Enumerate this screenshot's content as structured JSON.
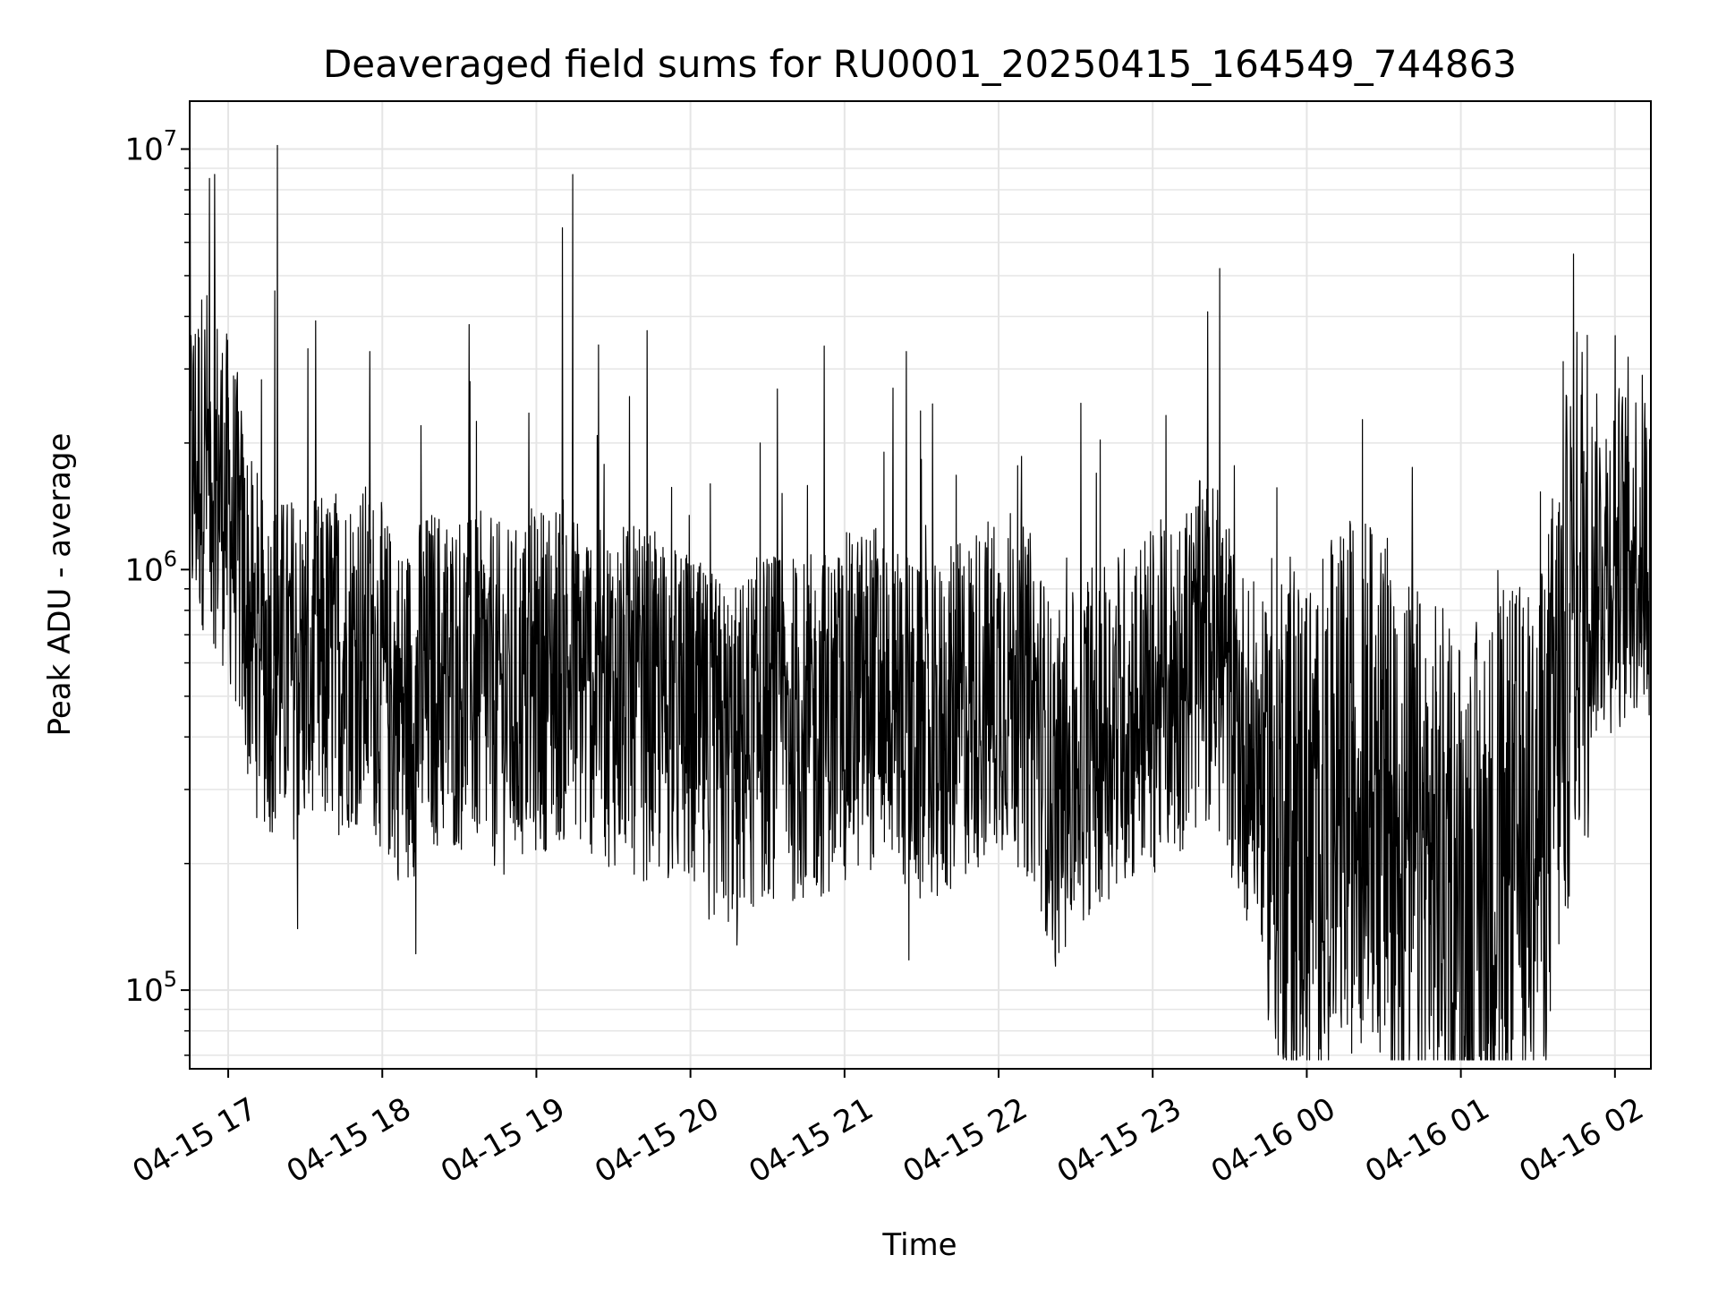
{
  "chart_data": {
    "type": "line",
    "title": "Deaveraged field sums for RU0001_20250415_164549_744863",
    "xlabel": "Time",
    "ylabel": "Peak ADU - average",
    "yscale": "log",
    "ylim": [
      65000,
      13000000
    ],
    "xlim": [
      "2025-04-15 16:45",
      "2025-04-16 02:14"
    ],
    "grid": true,
    "legend": "none",
    "line_color": "#000000",
    "grid_color": "#e5e5e5",
    "x_ticks": [
      {
        "label": "04-15 17",
        "t": "2025-04-15 17:00"
      },
      {
        "label": "04-15 18",
        "t": "2025-04-15 18:00"
      },
      {
        "label": "04-15 19",
        "t": "2025-04-15 19:00"
      },
      {
        "label": "04-15 20",
        "t": "2025-04-15 20:00"
      },
      {
        "label": "04-15 21",
        "t": "2025-04-15 21:00"
      },
      {
        "label": "04-15 22",
        "t": "2025-04-15 22:00"
      },
      {
        "label": "04-15 23",
        "t": "2025-04-15 23:00"
      },
      {
        "label": "04-16 00",
        "t": "2025-04-16 00:00"
      },
      {
        "label": "04-16 01",
        "t": "2025-04-16 01:00"
      },
      {
        "label": "04-16 02",
        "t": "2025-04-16 02:00"
      }
    ],
    "y_ticks": [
      {
        "base": "10",
        "exp": "5",
        "value": 100000
      },
      {
        "base": "10",
        "exp": "6",
        "value": 1000000
      },
      {
        "base": "10",
        "exp": "7",
        "value": 10000000
      }
    ],
    "x": [
      "2025-04-15 16:45",
      "2025-04-15 16:51",
      "2025-04-15 16:57",
      "2025-04-15 17:03",
      "2025-04-15 17:09",
      "2025-04-15 17:15",
      "2025-04-15 17:21",
      "2025-04-15 17:27",
      "2025-04-15 17:33",
      "2025-04-15 17:39",
      "2025-04-15 17:45",
      "2025-04-15 17:51",
      "2025-04-15 17:57",
      "2025-04-15 18:03",
      "2025-04-15 18:09",
      "2025-04-15 18:15",
      "2025-04-15 18:21",
      "2025-04-15 18:27",
      "2025-04-15 18:33",
      "2025-04-15 18:39",
      "2025-04-15 18:45",
      "2025-04-15 18:51",
      "2025-04-15 18:57",
      "2025-04-15 19:03",
      "2025-04-15 19:09",
      "2025-04-15 19:15",
      "2025-04-15 19:21",
      "2025-04-15 19:27",
      "2025-04-15 19:33",
      "2025-04-15 19:39",
      "2025-04-15 19:45",
      "2025-04-15 19:51",
      "2025-04-15 19:57",
      "2025-04-15 20:03",
      "2025-04-15 20:09",
      "2025-04-15 20:15",
      "2025-04-15 20:21",
      "2025-04-15 20:27",
      "2025-04-15 20:33",
      "2025-04-15 20:39",
      "2025-04-15 20:45",
      "2025-04-15 20:51",
      "2025-04-15 20:57",
      "2025-04-15 21:03",
      "2025-04-15 21:09",
      "2025-04-15 21:15",
      "2025-04-15 21:21",
      "2025-04-15 21:27",
      "2025-04-15 21:33",
      "2025-04-15 21:39",
      "2025-04-15 21:45",
      "2025-04-15 21:51",
      "2025-04-15 21:57",
      "2025-04-15 22:03",
      "2025-04-15 22:09",
      "2025-04-15 22:15",
      "2025-04-15 22:21",
      "2025-04-15 22:27",
      "2025-04-15 22:33",
      "2025-04-15 22:39",
      "2025-04-15 22:45",
      "2025-04-15 22:51",
      "2025-04-15 22:57",
      "2025-04-15 23:03",
      "2025-04-15 23:09",
      "2025-04-15 23:15",
      "2025-04-15 23:21",
      "2025-04-15 23:27",
      "2025-04-15 23:33",
      "2025-04-15 23:39",
      "2025-04-15 23:45",
      "2025-04-15 23:51",
      "2025-04-15 23:57",
      "2025-04-16 00:03",
      "2025-04-16 00:09",
      "2025-04-16 00:15",
      "2025-04-16 00:21",
      "2025-04-16 00:27",
      "2025-04-16 00:33",
      "2025-04-16 00:39",
      "2025-04-16 00:45",
      "2025-04-16 00:51",
      "2025-04-16 00:57",
      "2025-04-16 01:03",
      "2025-04-16 01:09",
      "2025-04-16 01:15",
      "2025-04-16 01:21",
      "2025-04-16 01:27",
      "2025-04-16 01:33",
      "2025-04-16 01:39",
      "2025-04-16 01:45",
      "2025-04-16 01:51",
      "2025-04-16 01:57",
      "2025-04-16 02:03",
      "2025-04-16 02:09",
      "2025-04-16 02:14"
    ],
    "y": [
      1700000,
      1900000,
      1600000,
      1200000,
      700000,
      620000,
      580000,
      600000,
      560000,
      600000,
      620000,
      640000,
      600000,
      500000,
      450000,
      520000,
      560000,
      540000,
      560000,
      520000,
      500000,
      480000,
      530000,
      560000,
      580000,
      550000,
      540000,
      520000,
      500000,
      480000,
      470000,
      460000,
      440000,
      400000,
      380000,
      360000,
      380000,
      420000,
      430000,
      420000,
      410000,
      430000,
      450000,
      480000,
      500000,
      520000,
      480000,
      400000,
      380000,
      420000,
      460000,
      500000,
      520000,
      560000,
      500000,
      450000,
      300000,
      320000,
      380000,
      420000,
      440000,
      460000,
      480000,
      500000,
      540000,
      600000,
      640000,
      600000,
      420000,
      360000,
      300000,
      280000,
      250000,
      230000,
      260000,
      300000,
      330000,
      300000,
      240000,
      220000,
      200000,
      190000,
      180000,
      170000,
      175000,
      200000,
      210000,
      220000,
      280000,
      500000,
      900000,
      1000000,
      1050000,
      1100000,
      1150000,
      1150000
    ],
    "spikes": [
      {
        "t": "2025-04-15 17:19",
        "y": 10200000
      },
      {
        "t": "2025-04-15 17:18",
        "y": 4600000
      },
      {
        "t": "2025-04-15 19:14",
        "y": 8700000
      },
      {
        "t": "2025-04-15 19:10",
        "y": 6500000
      },
      {
        "t": "2025-04-15 19:43",
        "y": 3700000
      },
      {
        "t": "2025-04-15 20:52",
        "y": 3400000
      },
      {
        "t": "2025-04-15 21:24",
        "y": 3300000
      },
      {
        "t": "2025-04-15 23:26",
        "y": 5200000
      },
      {
        "t": "2025-04-15 17:55",
        "y": 3300000
      },
      {
        "t": "2025-04-15 18:34",
        "y": 2800000
      },
      {
        "t": "2025-04-15 20:27",
        "y": 2000000
      },
      {
        "t": "2025-04-15 18:15",
        "y": 2200000
      },
      {
        "t": "2025-04-16 00:41",
        "y": 1750000
      },
      {
        "t": "2025-04-16 02:00",
        "y": 3600000
      },
      {
        "t": "2025-04-16 02:05",
        "y": 3200000
      },
      {
        "t": "2025-04-16 00:58",
        "y": 90000
      },
      {
        "t": "2025-04-16 01:17",
        "y": 82000
      },
      {
        "t": "2025-04-15 18:13",
        "y": 122000
      },
      {
        "t": "2025-04-15 22:22",
        "y": 114000
      },
      {
        "t": "2025-04-15 21:25",
        "y": 118000
      },
      {
        "t": "2025-04-15 20:18",
        "y": 128000
      },
      {
        "t": "2025-04-15 17:27",
        "y": 140000
      }
    ]
  }
}
